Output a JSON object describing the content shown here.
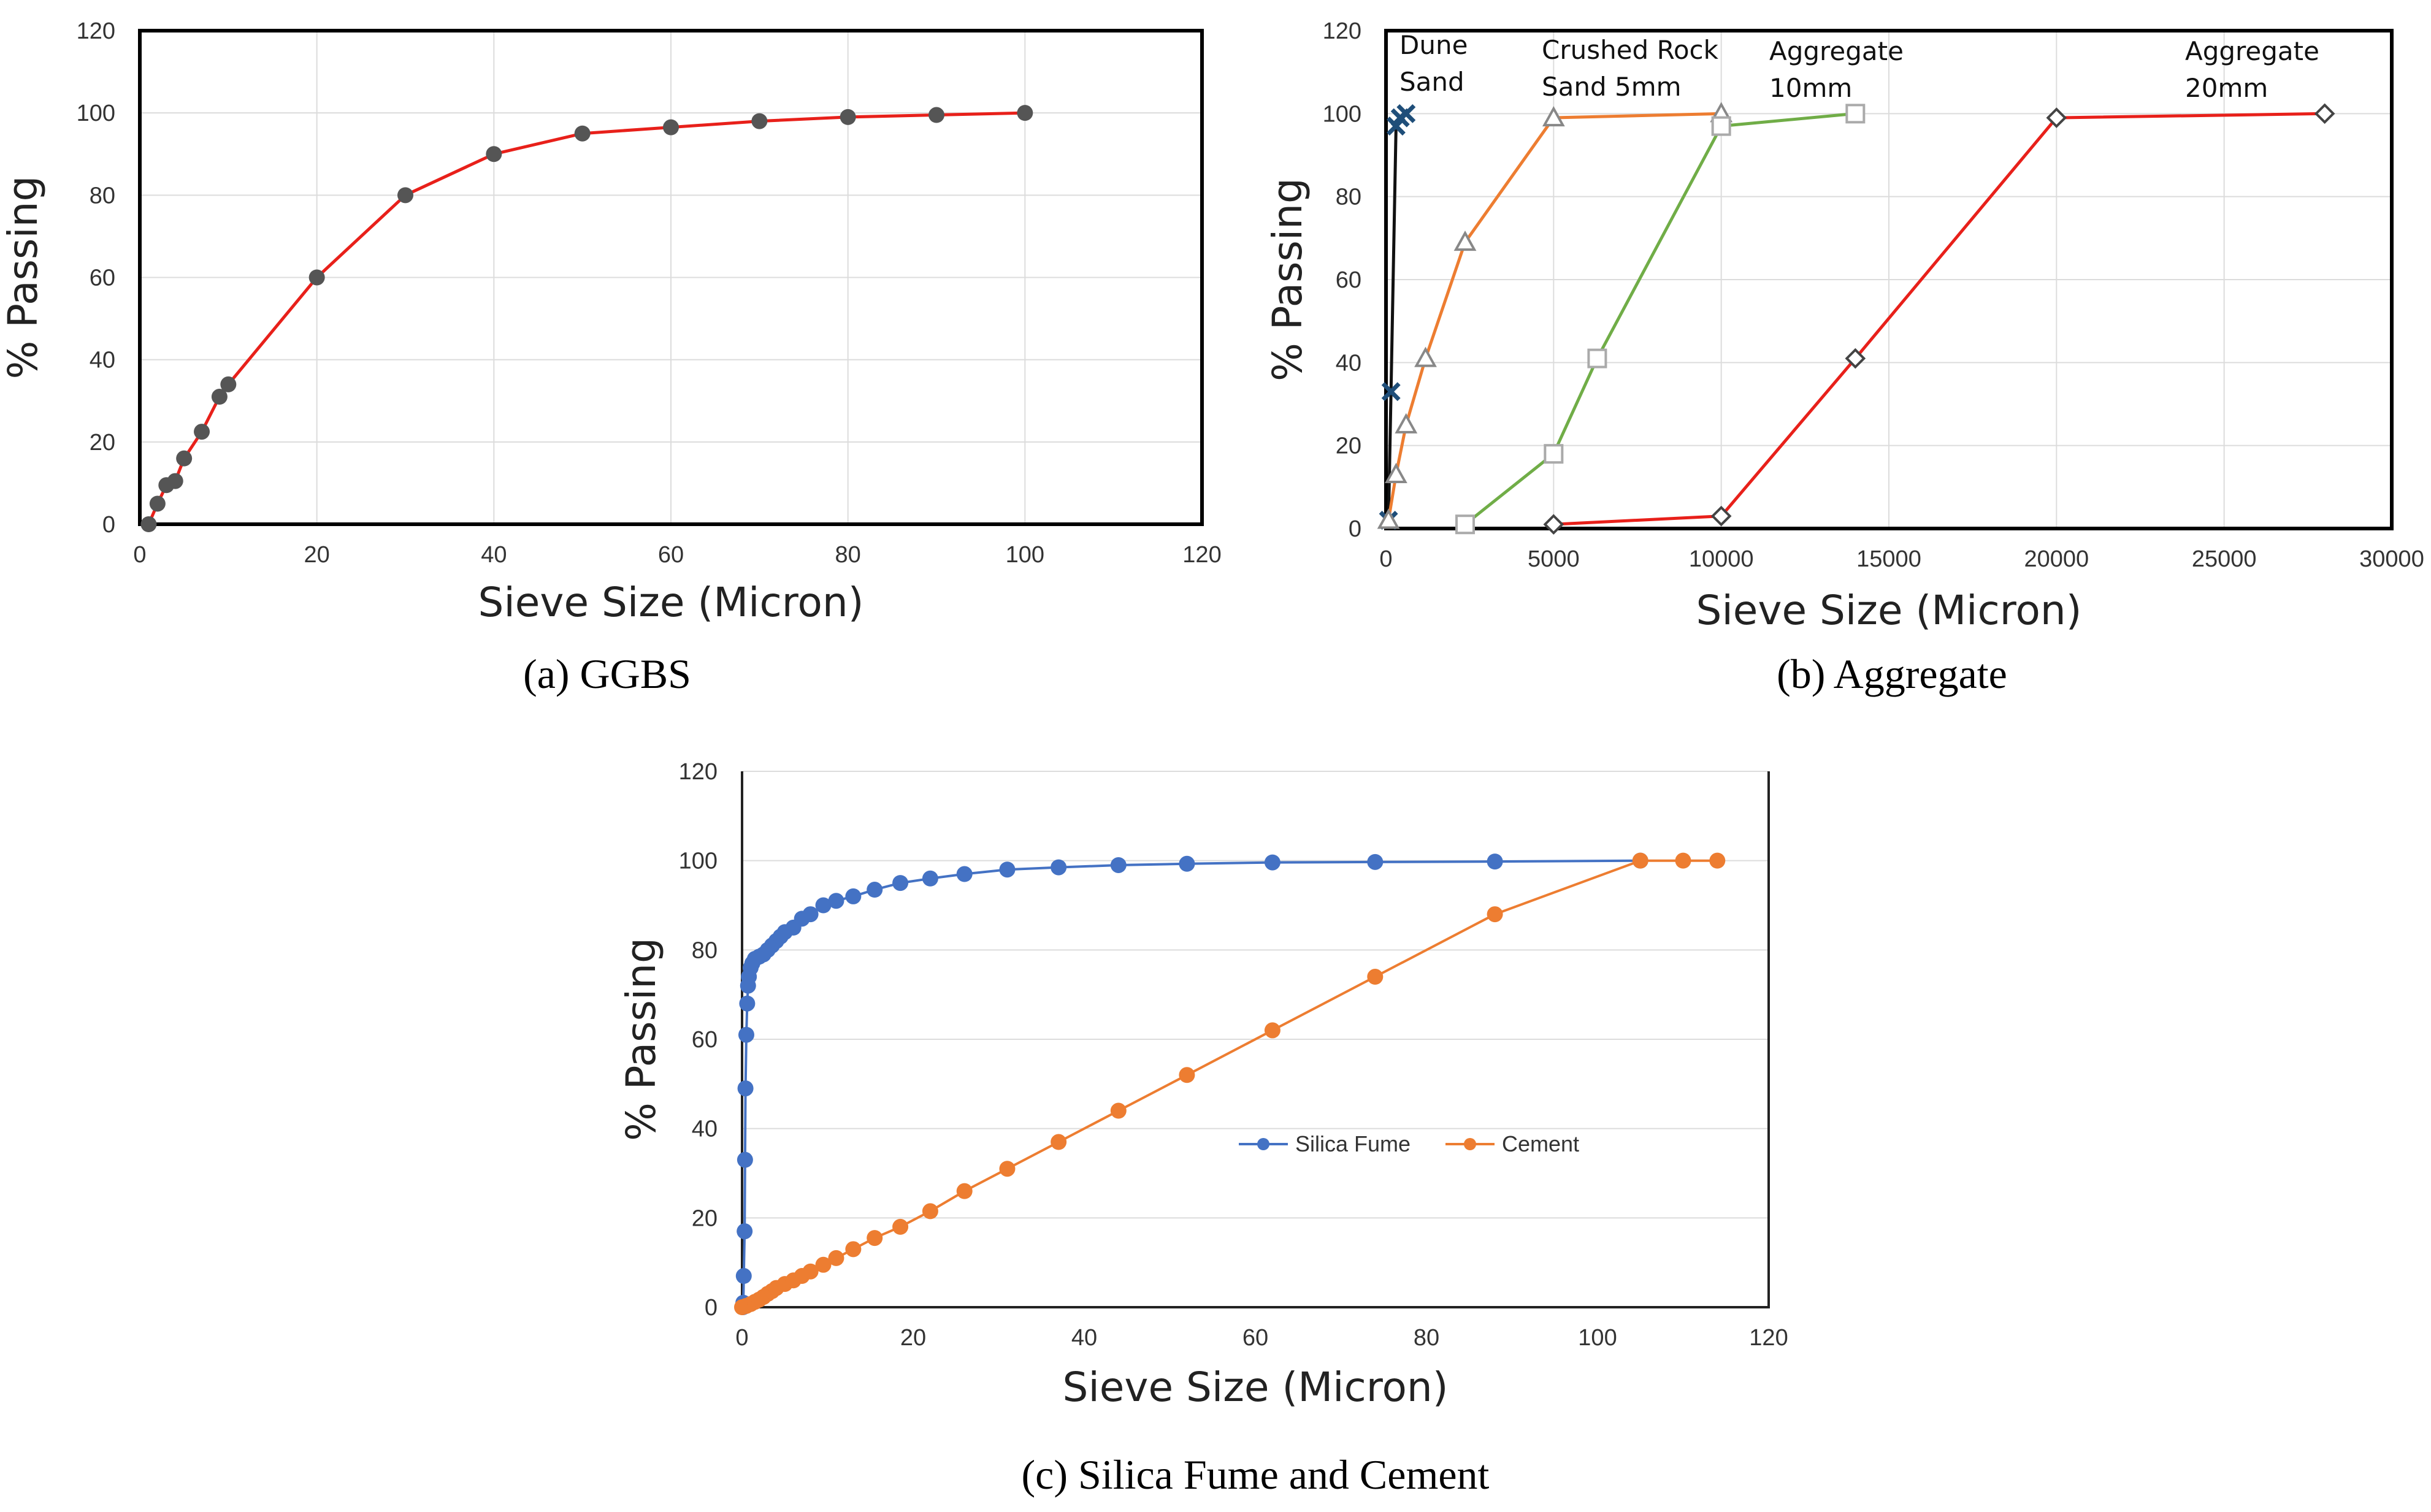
{
  "chart_data": [
    {
      "id": "ggbs",
      "type": "line",
      "caption": "(a) GGBS",
      "xlabel": "Sieve Size (Micron)",
      "ylabel": "% Passing",
      "xlim": [
        0,
        120
      ],
      "ylim": [
        0,
        120
      ],
      "xticks": [
        "0",
        "20",
        "40",
        "60",
        "80",
        "100",
        "120"
      ],
      "yticks": [
        "0",
        "20",
        "40",
        "60",
        "80",
        "100",
        "120"
      ],
      "grid": true,
      "series": [
        {
          "name": "GGBS",
          "color": "#e8201a",
          "marker": "circle",
          "markerColor": "#555555",
          "x": [
            1,
            2,
            3,
            4,
            5,
            7,
            9,
            10,
            20,
            30,
            40,
            50,
            60,
            70,
            80,
            90,
            100
          ],
          "y": [
            0,
            5,
            9.5,
            10.5,
            16,
            22.5,
            31,
            34,
            60,
            80,
            90,
            95,
            96.5,
            98,
            99,
            99.5,
            100
          ]
        }
      ]
    },
    {
      "id": "aggregate",
      "type": "line",
      "caption": "(b) Aggregate",
      "xlabel": "Sieve Size (Micron)",
      "ylabel": "% Passing",
      "xlim": [
        0,
        30000
      ],
      "ylim": [
        0,
        120
      ],
      "xticks": [
        "0",
        "5000",
        "10000",
        "15000",
        "20000",
        "25000",
        "30000"
      ],
      "yticks": [
        "0",
        "20",
        "40",
        "60",
        "80",
        "100",
        "120"
      ],
      "grid": true,
      "series": [
        {
          "name": "Dune Sand",
          "color": "#111111",
          "marker": "x",
          "markerColor": "#1f4e79",
          "x": [
            75,
            150,
            300,
            425,
            600
          ],
          "y": [
            2,
            33,
            97,
            99,
            100
          ]
        },
        {
          "name": "Crushed Rock Sand 5mm",
          "color": "#ed7d31",
          "marker": "triangle",
          "markerColor": "#888888",
          "x": [
            75,
            300,
            600,
            1180,
            2360,
            5000,
            10000
          ],
          "y": [
            2,
            13,
            25,
            41,
            69,
            99,
            100
          ]
        },
        {
          "name": "Aggregate 10mm",
          "color": "#70ad47",
          "marker": "square",
          "markerColor": "#aaaaaa",
          "x": [
            2360,
            5000,
            6300,
            10000,
            14000
          ],
          "y": [
            1,
            18,
            41,
            97,
            100
          ]
        },
        {
          "name": "Aggregate 20mm",
          "color": "#e8201a",
          "marker": "diamond",
          "markerColor": "#444444",
          "x": [
            5000,
            10000,
            14000,
            20000,
            28000
          ],
          "y": [
            1,
            3,
            41,
            99,
            100
          ]
        }
      ],
      "annotations": [
        {
          "lines": [
            "Dune",
            "Sand"
          ],
          "series": "Dune Sand"
        },
        {
          "lines": [
            "Crushed Rock",
            "Sand 5mm"
          ],
          "series": "Crushed Rock Sand 5mm"
        },
        {
          "lines": [
            "Aggregate",
            "10mm"
          ],
          "series": "Aggregate 10mm"
        },
        {
          "lines": [
            "Aggregate",
            "20mm"
          ],
          "series": "Aggregate 20mm"
        }
      ]
    },
    {
      "id": "silica-cement",
      "type": "line",
      "caption": "(c) Silica Fume  and Cement",
      "xlabel": "Sieve Size (Micron)",
      "ylabel": "% Passing",
      "xlim": [
        0,
        120
      ],
      "ylim": [
        0,
        120
      ],
      "xticks": [
        "0",
        "20",
        "40",
        "60",
        "80",
        "100",
        "120"
      ],
      "yticks": [
        "0",
        "20",
        "40",
        "60",
        "80",
        "100",
        "120"
      ],
      "grid": true,
      "legend": "center-right",
      "series": [
        {
          "name": "Silica Fume",
          "color": "#4472c4",
          "marker": "circle",
          "markerColor": "#4472c4",
          "x": [
            0.1,
            0.15,
            0.2,
            0.3,
            0.35,
            0.4,
            0.5,
            0.6,
            0.7,
            0.8,
            1,
            1.2,
            1.5,
            2,
            2.5,
            3,
            3.5,
            4,
            4.5,
            5,
            6,
            7,
            8,
            9.5,
            11,
            13,
            15.5,
            18.5,
            22,
            26,
            31,
            37,
            44,
            52,
            62,
            74,
            88,
            105
          ],
          "y": [
            0,
            1,
            7,
            17,
            33,
            49,
            61,
            68,
            72,
            74,
            76,
            77,
            78,
            78.5,
            79,
            80,
            81,
            82,
            83,
            84,
            85,
            87,
            88,
            90,
            91,
            92,
            93.5,
            95,
            96,
            97,
            98,
            98.5,
            99,
            99.3,
            99.6,
            99.7,
            99.8,
            100
          ]
        },
        {
          "name": "Cement",
          "color": "#ed7d31",
          "marker": "circle",
          "markerColor": "#ed7d31",
          "x": [
            0,
            0.5,
            1,
            1.5,
            2,
            2.5,
            3,
            3.5,
            4,
            5,
            6,
            7,
            8,
            9.5,
            11,
            13,
            15.5,
            18.5,
            22,
            26,
            31,
            37,
            44,
            52,
            62,
            74,
            88,
            105,
            110,
            114
          ],
          "y": [
            0,
            0.3,
            0.7,
            1.2,
            1.7,
            2.3,
            3,
            3.6,
            4.3,
            5.2,
            6,
            7,
            8,
            9.5,
            11,
            13,
            15.5,
            18,
            21.5,
            26,
            31,
            37,
            44,
            52,
            62,
            74,
            88,
            100,
            100,
            100
          ]
        }
      ]
    }
  ]
}
